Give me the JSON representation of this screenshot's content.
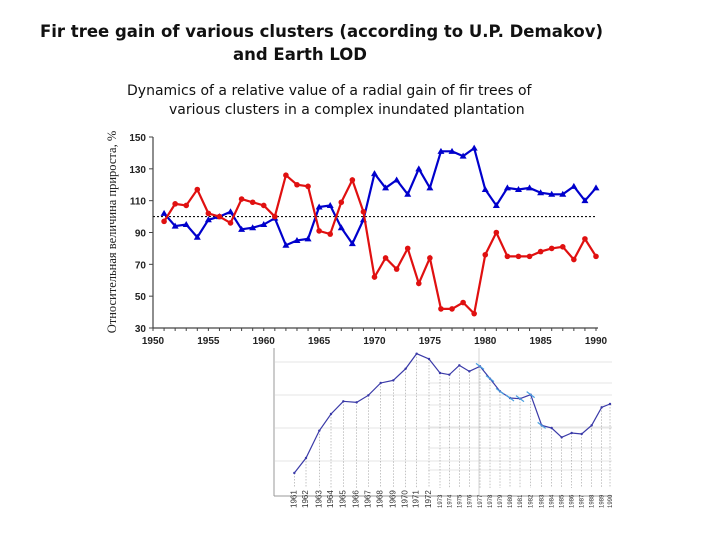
{
  "slide": {
    "title_line1": "Fir tree gain of various clusters (according to U.P. Demakov)",
    "title_line2": "and Earth LOD",
    "subtitle_line1": "Dynamics of a relative value of a radial gain of fir trees of",
    "subtitle_line2": "various clusters in a complex inundated plantation"
  },
  "chart_data": [
    {
      "type": "line",
      "ylabel": "Относительная величина прироста, %",
      "xlim": [
        1950,
        1990
      ],
      "ylim": [
        30,
        150
      ],
      "xticks": [
        1950,
        1955,
        1960,
        1965,
        1970,
        1975,
        1980,
        1985,
        1990
      ],
      "yticks": [
        30,
        50,
        70,
        90,
        110,
        130,
        150
      ],
      "reference_line": 100,
      "x": [
        1951,
        1952,
        1953,
        1954,
        1955,
        1956,
        1957,
        1958,
        1959,
        1960,
        1961,
        1962,
        1963,
        1964,
        1965,
        1966,
        1967,
        1968,
        1969,
        1970,
        1971,
        1972,
        1973,
        1974,
        1975,
        1976,
        1977,
        1978,
        1979,
        1980,
        1981,
        1982,
        1983,
        1984,
        1985,
        1986,
        1987,
        1988,
        1989,
        1990
      ],
      "series": [
        {
          "color": "#0000cc",
          "marker": "triangle",
          "values": [
            102,
            94,
            95,
            87,
            98,
            100,
            103,
            92,
            93,
            95,
            99,
            82,
            85,
            86,
            106,
            107,
            93,
            83,
            98,
            127,
            118,
            123,
            114,
            130,
            118,
            141,
            141,
            138,
            143,
            117,
            107,
            118,
            117,
            118,
            115,
            114,
            114,
            119,
            110,
            118
          ]
        },
        {
          "color": "#e01010",
          "marker": "circle",
          "values": [
            97,
            108,
            107,
            117,
            102,
            100,
            96,
            111,
            109,
            107,
            100,
            126,
            120,
            119,
            91,
            89,
            109,
            123,
            103,
            62,
            74,
            67,
            80,
            58,
            74,
            42,
            42,
            46,
            39,
            76,
            90,
            75,
            75,
            75,
            78,
            80,
            81,
            73,
            86,
            75
          ]
        }
      ]
    },
    {
      "type": "line",
      "color": "#3a3aa8",
      "xticks": [
        "1961",
        "1962",
        "1963",
        "1964",
        "1965",
        "1966",
        "1967",
        "1968",
        "1969",
        "1970",
        "1971",
        "1972",
        "1973",
        "1974",
        "1975",
        "1976",
        "1977",
        "1978",
        "1979",
        "1980",
        "1981",
        "1982",
        "1983",
        "1984",
        "1985",
        "1986",
        "1987",
        "1988",
        "1989",
        "1990"
      ]
    }
  ]
}
